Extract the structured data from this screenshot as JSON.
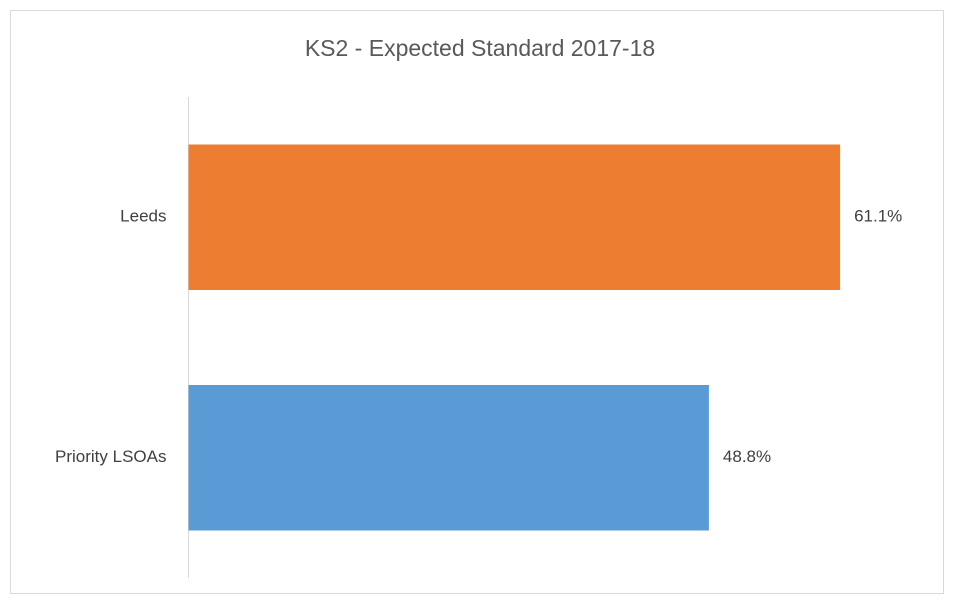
{
  "chart_data": {
    "type": "hbar",
    "title": "KS2 - Expected Standard 2017-18",
    "categories": [
      "Leeds",
      "Priority LSOAs"
    ],
    "values": [
      61.1,
      48.8
    ],
    "value_labels": [
      "61.1%",
      "48.8%"
    ],
    "colors": [
      "#ed7d31",
      "#5b9bd5"
    ],
    "xlim": [
      0,
      70
    ]
  }
}
